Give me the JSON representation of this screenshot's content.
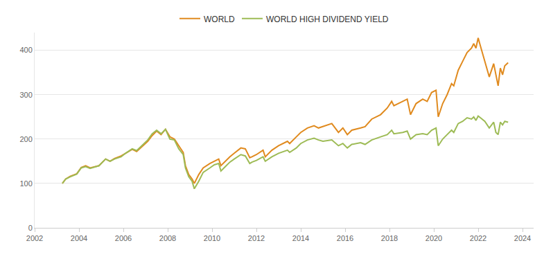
{
  "chart_data": {
    "type": "line",
    "x": [
      2003.25,
      2003.4,
      2003.6,
      2003.9,
      2004.1,
      2004.3,
      2004.5,
      2004.7,
      2004.9,
      2005.2,
      2005.4,
      2005.6,
      2005.9,
      2006.1,
      2006.4,
      2006.6,
      2006.9,
      2007.1,
      2007.3,
      2007.5,
      2007.7,
      2007.9,
      2008.1,
      2008.3,
      2008.5,
      2008.7,
      2008.8,
      2008.95,
      2009.1,
      2009.2,
      2009.4,
      2009.6,
      2009.9,
      2010.1,
      2010.3,
      2010.4,
      2010.6,
      2010.8,
      2011.0,
      2011.3,
      2011.5,
      2011.7,
      2011.8,
      2012.0,
      2012.3,
      2012.4,
      2012.7,
      2013.0,
      2013.4,
      2013.5,
      2013.8,
      2014.0,
      2014.3,
      2014.6,
      2014.8,
      2015.0,
      2015.4,
      2015.7,
      2015.9,
      2016.1,
      2016.3,
      2016.7,
      2016.9,
      2017.2,
      2017.6,
      2017.9,
      2018.1,
      2018.2,
      2018.6,
      2018.8,
      2018.95,
      2019.2,
      2019.5,
      2019.7,
      2019.9,
      2020.1,
      2020.2,
      2020.4,
      2020.6,
      2020.8,
      2020.9,
      2021.1,
      2021.3,
      2021.5,
      2021.7,
      2021.8,
      2021.9,
      2022.0,
      2022.1,
      2022.3,
      2022.5,
      2022.7,
      2022.8,
      2022.9,
      2023.0,
      2023.1,
      2023.2,
      2023.35
    ],
    "series": [
      {
        "name": "WORLD",
        "color": "#e08a1e",
        "values": [
          100,
          110,
          116,
          122,
          136,
          140,
          135,
          138,
          140,
          155,
          150,
          156,
          162,
          168,
          177,
          172,
          185,
          195,
          208,
          218,
          210,
          222,
          205,
          200,
          185,
          170,
          140,
          120,
          110,
          100,
          120,
          135,
          145,
          150,
          155,
          140,
          150,
          160,
          168,
          180,
          178,
          158,
          160,
          165,
          175,
          160,
          175,
          185,
          195,
          190,
          205,
          215,
          225,
          230,
          225,
          228,
          235,
          215,
          225,
          210,
          220,
          225,
          228,
          245,
          255,
          270,
          285,
          275,
          285,
          290,
          255,
          280,
          290,
          285,
          305,
          310,
          250,
          280,
          300,
          325,
          320,
          355,
          375,
          395,
          405,
          415,
          405,
          428,
          410,
          375,
          340,
          370,
          345,
          320,
          360,
          345,
          365,
          372
        ]
      },
      {
        "name": "WORLD HIGH DIVIDEND YIELD",
        "color": "#9dbb55",
        "values": [
          100,
          110,
          115,
          121,
          135,
          138,
          134,
          137,
          140,
          155,
          150,
          155,
          160,
          168,
          178,
          174,
          188,
          198,
          212,
          220,
          212,
          222,
          200,
          198,
          178,
          165,
          135,
          115,
          105,
          88,
          105,
          125,
          135,
          142,
          145,
          128,
          138,
          148,
          155,
          165,
          162,
          145,
          148,
          152,
          160,
          150,
          160,
          168,
          175,
          170,
          180,
          190,
          198,
          202,
          198,
          195,
          198,
          185,
          190,
          180,
          188,
          192,
          188,
          198,
          205,
          210,
          220,
          212,
          215,
          218,
          200,
          210,
          212,
          210,
          220,
          225,
          185,
          200,
          210,
          220,
          215,
          235,
          240,
          248,
          245,
          250,
          242,
          252,
          248,
          240,
          225,
          238,
          215,
          210,
          238,
          232,
          240,
          238
        ]
      }
    ],
    "xlim": [
      2002,
      2024.5
    ],
    "xticks": [
      2002,
      2004,
      2006,
      2008,
      2010,
      2012,
      2014,
      2016,
      2018,
      2020,
      2022,
      2024
    ],
    "ylim": [
      0,
      440
    ],
    "yticks": [
      0,
      100,
      200,
      300,
      400
    ],
    "grid": true,
    "legend": "top"
  }
}
